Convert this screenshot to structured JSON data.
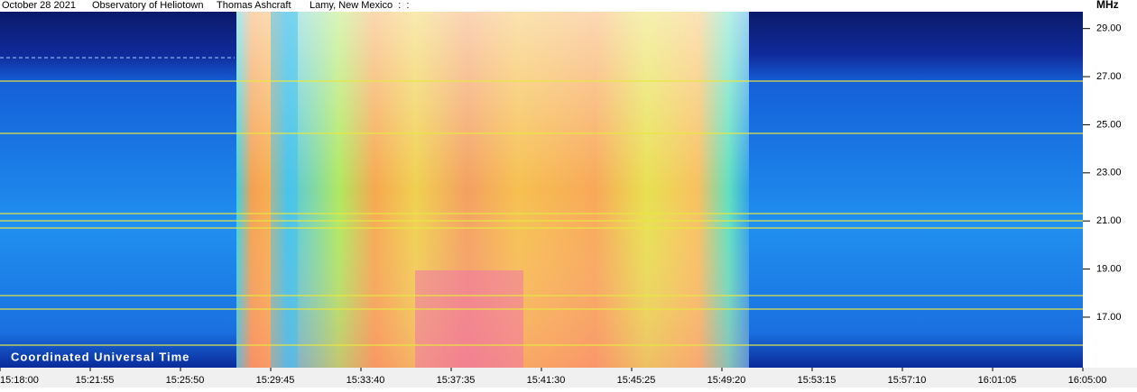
{
  "header": [
    "October 28 2021",
    "Observatory of Heliotown",
    "Thomas Ashcraft",
    "Lamy, New Mexico  :  :"
  ],
  "chart_data": {
    "type": "spectrogram",
    "y_label": "MHz",
    "x_label": "Coordinated Universal Time",
    "ylim": [
      14.9,
      29.7
    ],
    "yticks": [
      {
        "value": 17,
        "label": "17.00"
      },
      {
        "value": 19,
        "label": "19.00"
      },
      {
        "value": 21,
        "label": "21.00"
      },
      {
        "value": 23,
        "label": "23.00"
      },
      {
        "value": 25,
        "label": "25.00"
      },
      {
        "value": 27,
        "label": "27.00"
      },
      {
        "value": 29,
        "label": "29.00"
      }
    ],
    "xticks": [
      "15:18:00",
      "15:21:55",
      "15:25:50",
      "15:29:45",
      "15:33:40",
      "15:37:35",
      "15:41:30",
      "15:45:25",
      "15:49:20",
      "15:53:15",
      "15:57:10",
      "16:01:05",
      "16:05:00"
    ]
  }
}
